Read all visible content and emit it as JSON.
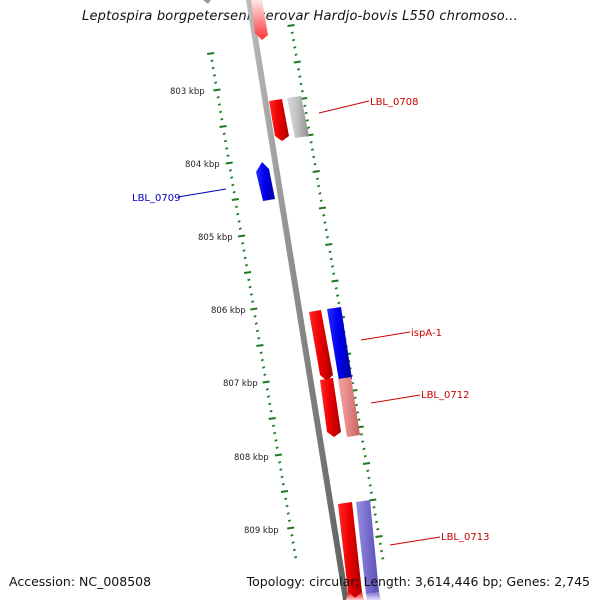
{
  "header": {
    "title": "Leptospira borgpetersenii serovar Hardjo-bovis L550 chromoso..."
  },
  "footer": {
    "accession": "Accession: NC_008508",
    "stats": "Topology: circular; Length: 3,614,446 bp; Genes: 2,745"
  },
  "colors": {
    "forward_gene": "#ee0000",
    "reverse_gene": "#0000dd",
    "other_gene": "#b8b8b8",
    "backbone": "#8c8c8c",
    "tick": "#1e7a1e",
    "forward_label": "#cc0000",
    "reverse_label": "#0000bb"
  },
  "map": {
    "ticks": [
      {
        "label": "803 kbp"
      },
      {
        "label": "804 kbp"
      },
      {
        "label": "805 kbp"
      },
      {
        "label": "806 kbp"
      },
      {
        "label": "807 kbp"
      },
      {
        "label": "808 kbp"
      },
      {
        "label": "809 kbp"
      }
    ],
    "gene_labels": [
      {
        "text": "LBL_0708",
        "strand": "forward"
      },
      {
        "text": "LBL_0709",
        "strand": "reverse"
      },
      {
        "text": "ispA-1",
        "strand": "forward"
      },
      {
        "text": "LBL_0712",
        "strand": "forward"
      },
      {
        "text": "LBL_0713",
        "strand": "forward"
      }
    ]
  }
}
